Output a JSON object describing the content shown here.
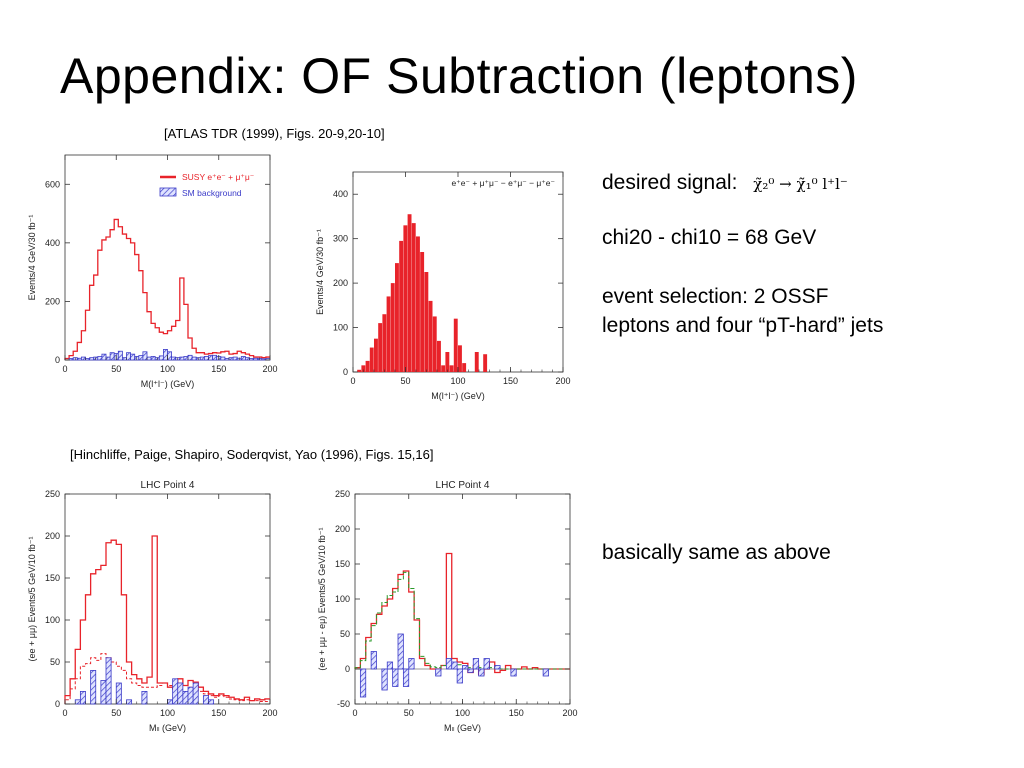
{
  "slide": {
    "title": "Appendix:  OF Subtraction (leptons)",
    "cite_top": "[ATLAS TDR (1999), Figs. 20-9,20-10]",
    "cite_bottom": "[Hinchliffe, Paige, Shapiro, Soderqvist, Yao (1996), Figs. 15,16]",
    "signal_label": "desired signal:",
    "signal_formula": "χ̃₂⁰ → χ̃₁⁰ l⁺l⁻",
    "mass_diff": "chi20 - chi10 = 68 GeV",
    "selection_line1": "event selection:  2 OSSF",
    "selection_line2": "leptons and four “pT-hard” jets",
    "note": "basically same as above"
  },
  "colors": {
    "signal": "#e8232a",
    "background": "#3b3bc8",
    "dashed_green": "#2a9a2a"
  },
  "chart_data": [
    {
      "type": "bar",
      "xlabel": "M(l⁺l⁻) (GeV)",
      "ylabel": "Events/4 GeV/30 fb⁻¹",
      "xlim": [
        0,
        200
      ],
      "ylim": [
        0,
        700
      ],
      "xticks": [
        "0",
        "50",
        "100",
        "150",
        "200"
      ],
      "yticks": [
        "0",
        "200",
        "400",
        "600"
      ],
      "bin_width": 4,
      "legend": [
        "SUSY e⁺e⁻ + μ⁺μ⁻",
        "SM background"
      ],
      "legend_position": "top-right",
      "series": [
        {
          "name": "SUSY e⁺e⁻ + μ⁺μ⁻",
          "style": "step-red",
          "values": [
            5,
            15,
            30,
            60,
            100,
            170,
            255,
            290,
            375,
            410,
            420,
            445,
            480,
            455,
            430,
            415,
            400,
            360,
            305,
            230,
            165,
            125,
            110,
            95,
            90,
            100,
            115,
            135,
            280,
            190,
            75,
            40,
            25,
            25,
            20,
            22,
            25,
            24,
            28,
            30,
            20,
            22,
            30,
            25,
            20,
            15,
            10,
            10,
            8,
            10
          ]
        },
        {
          "name": "SM background",
          "style": "hatch-blue",
          "values": [
            0,
            5,
            8,
            6,
            10,
            5,
            8,
            10,
            12,
            20,
            10,
            25,
            22,
            30,
            8,
            25,
            20,
            12,
            15,
            28,
            10,
            12,
            8,
            14,
            36,
            28,
            10,
            8,
            10,
            12,
            16,
            10,
            8,
            10,
            12,
            15,
            16,
            12,
            10,
            5,
            8,
            10,
            6,
            12,
            8,
            5,
            6,
            5,
            4,
            5
          ]
        }
      ]
    },
    {
      "type": "bar",
      "xlabel": "M(l⁺l⁻) (GeV)",
      "ylabel": "Events/4 GeV/30 fb⁻¹",
      "xlim": [
        0,
        200
      ],
      "ylim": [
        0,
        450
      ],
      "xticks": [
        "0",
        "50",
        "100",
        "150",
        "200"
      ],
      "yticks": [
        "0",
        "100",
        "200",
        "300",
        "400"
      ],
      "bin_width": 4,
      "annotation": "e⁺e⁻ + μ⁺μ⁻ − e⁺μ⁻ − μ⁺e⁻",
      "series": [
        {
          "name": "",
          "style": "filled-red",
          "values": [
            0,
            5,
            15,
            25,
            55,
            75,
            110,
            130,
            170,
            200,
            245,
            295,
            330,
            355,
            335,
            305,
            270,
            225,
            160,
            125,
            70,
            15,
            45,
            15,
            120,
            60,
            20,
            0,
            0,
            45,
            0,
            40,
            0,
            0,
            0,
            0,
            0,
            0,
            0,
            0,
            0,
            0,
            0,
            0,
            0,
            0,
            0,
            0,
            0,
            0
          ]
        }
      ]
    },
    {
      "type": "line",
      "title": "LHC Point 4",
      "xlabel": "Mₗₗ (GeV)",
      "ylabel": "(ee + μμ) Events/5 GeV/10 fb⁻¹",
      "xlim": [
        0,
        200
      ],
      "ylim": [
        0,
        250
      ],
      "xticks": [
        "0",
        "50",
        "100",
        "150",
        "200"
      ],
      "yticks": [
        "0",
        "50",
        "100",
        "150",
        "200",
        "250"
      ],
      "bin_width": 5,
      "series": [
        {
          "name": "",
          "style": "step-red",
          "values": [
            10,
            30,
            65,
            100,
            130,
            155,
            160,
            165,
            192,
            195,
            190,
            130,
            50,
            35,
            30,
            25,
            32,
            200,
            25,
            25,
            20,
            18,
            30,
            22,
            28,
            26,
            20,
            15,
            12,
            10,
            12,
            10,
            8,
            6,
            5,
            8,
            4,
            6,
            5,
            6
          ]
        },
        {
          "name": "",
          "style": "dashed-red",
          "values": [
            5,
            18,
            30,
            45,
            48,
            55,
            52,
            60,
            55,
            50,
            45,
            40,
            30,
            25,
            22,
            20,
            20,
            20,
            22,
            25,
            22,
            20,
            25,
            22,
            20,
            18,
            15,
            12,
            10,
            8,
            10,
            8,
            6,
            5,
            4,
            5,
            4,
            4,
            3,
            3
          ]
        },
        {
          "name": "",
          "style": "hatch-blue",
          "values": [
            0,
            0,
            5,
            15,
            0,
            40,
            0,
            28,
            55,
            0,
            25,
            0,
            5,
            0,
            0,
            15,
            0,
            0,
            0,
            0,
            5,
            30,
            25,
            15,
            20,
            25,
            0,
            10,
            5,
            0,
            0,
            0,
            0,
            0,
            0,
            0,
            0,
            0,
            0,
            0
          ]
        }
      ]
    },
    {
      "type": "line",
      "title": "LHC Point 4",
      "xlabel": "Mₗₗ (GeV)",
      "ylabel": "(ee + μμ - eμ) Events/5 GeV/10 fb⁻¹",
      "xlim": [
        0,
        200
      ],
      "ylim": [
        -50,
        250
      ],
      "xticks": [
        "0",
        "50",
        "100",
        "150",
        "200"
      ],
      "yticks": [
        "-50",
        "0",
        "50",
        "100",
        "150",
        "200",
        "250"
      ],
      "bin_width": 5,
      "series": [
        {
          "name": "",
          "style": "step-red",
          "values": [
            2,
            15,
            45,
            65,
            78,
            90,
            100,
            115,
            135,
            140,
            110,
            70,
            15,
            5,
            0,
            0,
            5,
            165,
            15,
            10,
            8,
            -5,
            5,
            -8,
            0,
            10,
            -5,
            -2,
            5,
            0,
            0,
            3,
            0,
            2,
            0,
            0,
            0,
            0,
            0,
            0
          ]
        },
        {
          "name": "",
          "style": "dashed-green",
          "values": [
            2,
            12,
            40,
            62,
            80,
            95,
            105,
            110,
            128,
            138,
            115,
            72,
            18,
            8,
            3,
            2,
            5,
            5,
            8,
            6,
            4,
            2,
            3,
            2,
            1,
            2,
            1,
            0,
            0,
            0,
            0,
            0,
            0,
            0,
            0,
            0,
            0,
            0,
            0,
            0
          ]
        },
        {
          "name": "",
          "style": "hatch-blue",
          "values": [
            0,
            -40,
            0,
            25,
            0,
            -30,
            10,
            -25,
            50,
            -25,
            15,
            0,
            0,
            0,
            0,
            -10,
            0,
            15,
            10,
            -20,
            5,
            -5,
            15,
            -10,
            15,
            0,
            5,
            0,
            0,
            -10,
            0,
            0,
            0,
            0,
            0,
            -10,
            0,
            0,
            0,
            0
          ]
        }
      ]
    }
  ]
}
